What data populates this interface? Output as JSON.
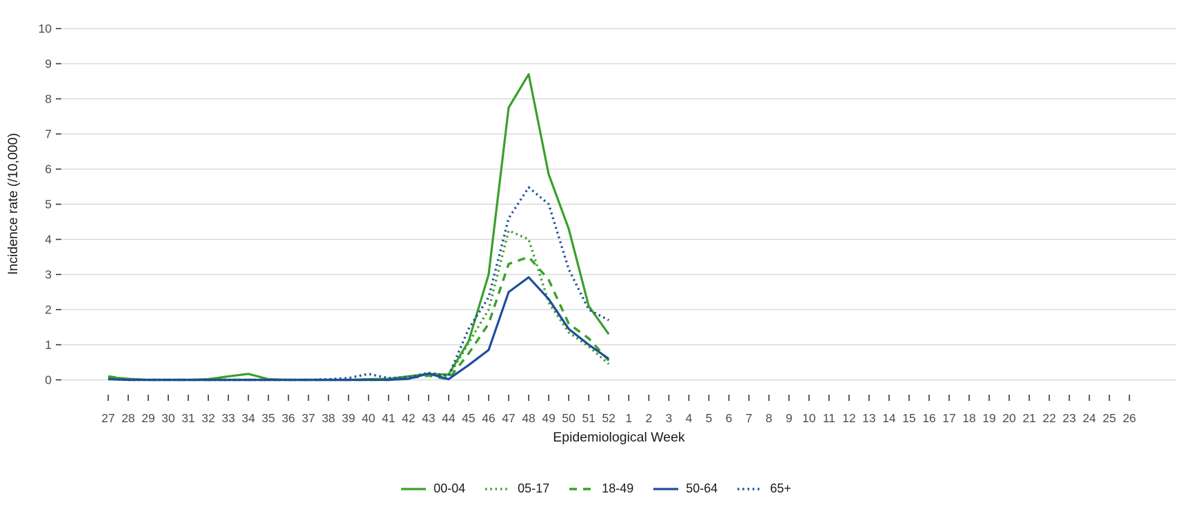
{
  "chart_data": {
    "type": "line",
    "title": "",
    "xlabel": "Epidemiological Week",
    "ylabel": "Incidence rate (/10,000)",
    "ylim": [
      0,
      10
    ],
    "yticks": [
      0,
      1,
      2,
      3,
      4,
      5,
      6,
      7,
      8,
      9,
      10
    ],
    "grid": "horizontal",
    "legend_position": "bottom",
    "categories": [
      "27",
      "28",
      "29",
      "30",
      "31",
      "32",
      "33",
      "34",
      "35",
      "36",
      "37",
      "38",
      "39",
      "40",
      "41",
      "42",
      "43",
      "44",
      "45",
      "46",
      "47",
      "48",
      "49",
      "50",
      "51",
      "52",
      "1",
      "2",
      "3",
      "4",
      "5",
      "6",
      "7",
      "8",
      "9",
      "10",
      "11",
      "12",
      "13",
      "14",
      "15",
      "16",
      "17",
      "18",
      "19",
      "20",
      "21",
      "22",
      "23",
      "24",
      "25",
      "26"
    ],
    "data_note": "series data covers weeks 27-52 only; lines end at week 52",
    "series": [
      {
        "name": "00-04",
        "color": "#39a02a",
        "line_style": "solid",
        "values": [
          0.08,
          0.03,
          0,
          0,
          0,
          0.02,
          0.1,
          0.17,
          0.02,
          0,
          0,
          0,
          0,
          0.02,
          0.03,
          0.1,
          0.17,
          0.15,
          1.1,
          3.0,
          7.75,
          8.7,
          5.85,
          4.3,
          2.1,
          1.3
        ]
      },
      {
        "name": "05-17",
        "color": "#39a02a",
        "line_style": "dotted",
        "values": [
          0.05,
          0,
          0,
          0,
          0,
          0,
          0,
          0,
          0,
          0,
          0,
          0,
          0,
          0,
          0.02,
          0.08,
          0.15,
          0.1,
          1.05,
          2.0,
          4.25,
          4.0,
          2.2,
          1.35,
          0.95,
          0.45
        ]
      },
      {
        "name": "18-49",
        "color": "#39a02a",
        "line_style": "dashed",
        "values": [
          0.1,
          0.02,
          0,
          0,
          0,
          0,
          0,
          0,
          0,
          0,
          0,
          0,
          0,
          0,
          0,
          0.05,
          0.12,
          0.02,
          0.75,
          1.6,
          3.3,
          3.5,
          2.85,
          1.6,
          1.18,
          0.55
        ]
      },
      {
        "name": "50-64",
        "color": "#1f4e9b",
        "line_style": "solid",
        "values": [
          0.02,
          0,
          0,
          0,
          0,
          0,
          0,
          0,
          0,
          0,
          0,
          0,
          0,
          0,
          0,
          0.03,
          0.18,
          0.02,
          0.42,
          0.85,
          2.5,
          2.92,
          2.3,
          1.45,
          1.0,
          0.6
        ]
      },
      {
        "name": "65+",
        "color": "#1f4e9b",
        "line_style": "dotted",
        "values": [
          0.02,
          0,
          0,
          0,
          0,
          0,
          0,
          0,
          0,
          0,
          0,
          0.02,
          0.05,
          0.17,
          0.05,
          0.08,
          0.2,
          0.12,
          1.45,
          2.35,
          4.6,
          5.48,
          5.0,
          3.15,
          2.0,
          1.7
        ]
      }
    ],
    "theme": {
      "grid_color": "#d9d9d9",
      "tick_color": "#333333",
      "tick_label_color": "#4d4d4d",
      "axis_title_color": "#1a1a1a"
    }
  }
}
